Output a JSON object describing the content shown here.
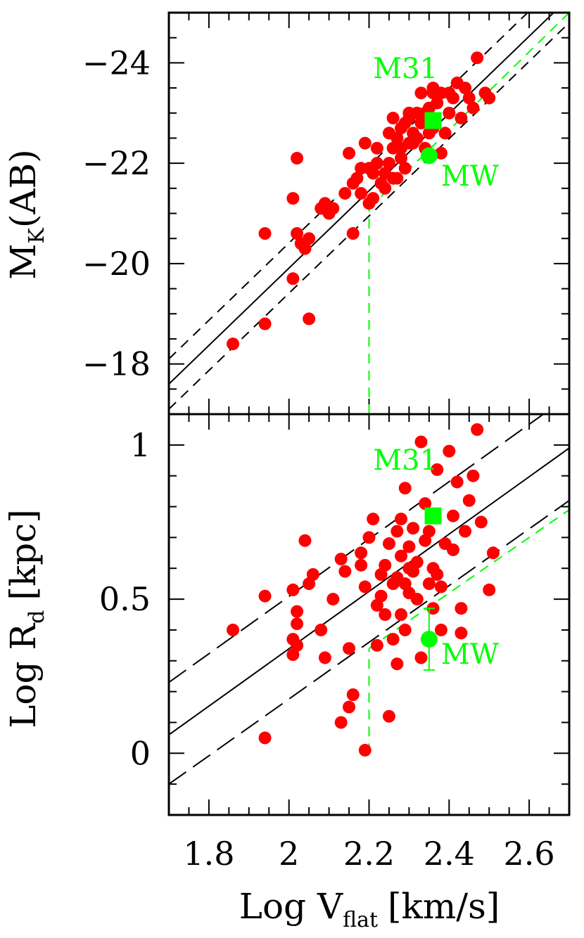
{
  "chart_data": [
    {
      "type": "scatter",
      "panel": "top",
      "xlabel_main": "Log V",
      "xlabel_sub": "flat",
      "xlabel_unit": "[km/s]",
      "ylabel_main": "M",
      "ylabel_sub": "K",
      "ylabel_unit": "(AB)",
      "xlim": [
        1.7,
        2.7
      ],
      "ylim": [
        -17,
        -25
      ],
      "xticks": [
        1.8,
        2.0,
        2.2,
        2.4,
        2.6
      ],
      "yticks": [
        -18,
        -20,
        -22,
        -24
      ],
      "yticks_labels": [
        "−18",
        "−20",
        "−22",
        "−24"
      ],
      "fit_lines": [
        {
          "style": "solid",
          "color": "#000000",
          "points": [
            [
              1.7,
              -17.6
            ],
            [
              2.7,
              -25.3
            ]
          ]
        },
        {
          "style": "dashed",
          "color": "#000000",
          "points": [
            [
              1.7,
              -18.1
            ],
            [
              2.7,
              -25.8
            ]
          ]
        },
        {
          "style": "dashed",
          "color": "#000000",
          "points": [
            [
              1.7,
              -17.1
            ],
            [
              2.7,
              -24.8
            ]
          ]
        },
        {
          "style": "dashed",
          "color": "#00ff00",
          "points": [
            [
              2.2,
              -21.1
            ],
            [
              2.7,
              -25.0
            ]
          ]
        },
        {
          "style": "dashed",
          "color": "#00ff00",
          "points": [
            [
              2.2,
              -17.0
            ],
            [
              2.2,
              -21.1
            ]
          ]
        }
      ],
      "points": [
        [
          1.86,
          -18.4
        ],
        [
          1.94,
          -18.8
        ],
        [
          1.94,
          -20.6
        ],
        [
          2.02,
          -22.1
        ],
        [
          2.01,
          -21.3
        ],
        [
          2.02,
          -20.6
        ],
        [
          2.03,
          -20.4
        ],
        [
          2.04,
          -20.3
        ],
        [
          2.05,
          -20.5
        ],
        [
          2.01,
          -19.7
        ],
        [
          2.05,
          -18.9
        ],
        [
          2.08,
          -21.1
        ],
        [
          2.09,
          -21.2
        ],
        [
          2.1,
          -21.0
        ],
        [
          2.11,
          -21.1
        ],
        [
          2.14,
          -21.4
        ],
        [
          2.16,
          -21.6
        ],
        [
          2.17,
          -21.7
        ],
        [
          2.18,
          -21.4
        ],
        [
          2.16,
          -20.6
        ],
        [
          2.15,
          -22.2
        ],
        [
          2.19,
          -22.4
        ],
        [
          2.2,
          -21.9
        ],
        [
          2.21,
          -21.3
        ],
        [
          2.2,
          -21.2
        ],
        [
          2.22,
          -22.3
        ],
        [
          2.23,
          -21.6
        ],
        [
          2.24,
          -21.8
        ],
        [
          2.25,
          -22.0
        ],
        [
          2.26,
          -21.7
        ],
        [
          2.26,
          -22.3
        ],
        [
          2.27,
          -22.5
        ],
        [
          2.28,
          -22.1
        ],
        [
          2.28,
          -22.7
        ],
        [
          2.29,
          -21.9
        ],
        [
          2.3,
          -22.9
        ],
        [
          2.3,
          -22.4
        ],
        [
          2.31,
          -22.6
        ],
        [
          2.32,
          -23.0
        ],
        [
          2.33,
          -22.8
        ],
        [
          2.33,
          -23.4
        ],
        [
          2.34,
          -22.3
        ],
        [
          2.35,
          -23.1
        ],
        [
          2.36,
          -22.7
        ],
        [
          2.36,
          -23.5
        ],
        [
          2.37,
          -23.2
        ],
        [
          2.38,
          -23.4
        ],
        [
          2.39,
          -22.6
        ],
        [
          2.4,
          -23.0
        ],
        [
          2.41,
          -23.3
        ],
        [
          2.42,
          -23.6
        ],
        [
          2.43,
          -22.9
        ],
        [
          2.44,
          -23.5
        ],
        [
          2.45,
          -23.3
        ],
        [
          2.46,
          -23.1
        ],
        [
          2.47,
          -24.1
        ],
        [
          2.49,
          -23.4
        ],
        [
          2.5,
          -23.3
        ],
        [
          2.38,
          -22.2
        ],
        [
          2.31,
          -22.4
        ],
        [
          2.27,
          -21.7
        ],
        [
          2.25,
          -22.6
        ],
        [
          2.22,
          -22.0
        ],
        [
          2.29,
          -22.8
        ],
        [
          2.35,
          -22.6
        ],
        [
          2.4,
          -23.4
        ],
        [
          2.36,
          -23.4
        ],
        [
          2.34,
          -23.0
        ],
        [
          2.32,
          -22.5
        ],
        [
          2.28,
          -22.3
        ],
        [
          2.24,
          -21.5
        ],
        [
          2.21,
          -21.8
        ],
        [
          2.18,
          -21.9
        ],
        [
          2.3,
          -23.0
        ],
        [
          2.26,
          -22.9
        ]
      ],
      "special_points": [
        {
          "label": "M31",
          "marker": "square",
          "x": 2.36,
          "y": -22.85
        },
        {
          "label": "MW",
          "marker": "circle",
          "x": 2.35,
          "y": -22.15
        }
      ],
      "annotations": [
        {
          "text": "M31",
          "x": 2.21,
          "y": -23.7
        },
        {
          "text": "MW",
          "x": 2.38,
          "y": -21.55
        }
      ]
    },
    {
      "type": "scatter",
      "panel": "bottom",
      "xlabel_main": "Log V",
      "xlabel_sub": "flat",
      "xlabel_unit": "[km/s]",
      "ylabel_main": "Log R",
      "ylabel_sub": "d",
      "ylabel_unit": "[kpc]",
      "xlim": [
        1.7,
        2.7
      ],
      "ylim": [
        -0.2,
        1.1
      ],
      "xticks": [
        1.8,
        2.0,
        2.2,
        2.4,
        2.6
      ],
      "xticks_labels": [
        "1.8",
        "2",
        "2.2",
        "2.4",
        "2.6"
      ],
      "yticks": [
        0,
        0.5,
        1
      ],
      "yticks_labels": [
        "0",
        "0.5",
        "1"
      ],
      "fit_lines": [
        {
          "style": "solid",
          "color": "#000000",
          "points": [
            [
              1.7,
              0.06
            ],
            [
              2.7,
              0.99
            ]
          ]
        },
        {
          "style": "longdash",
          "color": "#000000",
          "points": [
            [
              1.7,
              0.23
            ],
            [
              2.7,
              1.16
            ]
          ]
        },
        {
          "style": "longdash",
          "color": "#000000",
          "points": [
            [
              1.7,
              -0.1
            ],
            [
              2.7,
              0.82
            ]
          ]
        },
        {
          "style": "dashed",
          "color": "#00ff00",
          "points": [
            [
              2.2,
              0.34
            ],
            [
              2.7,
              0.79
            ]
          ]
        },
        {
          "style": "dashed",
          "color": "#00ff00",
          "points": [
            [
              2.2,
              0.0
            ],
            [
              2.2,
              0.34
            ]
          ]
        }
      ],
      "points": [
        [
          1.86,
          0.4
        ],
        [
          1.94,
          0.51
        ],
        [
          1.94,
          0.05
        ],
        [
          2.01,
          0.53
        ],
        [
          2.01,
          0.37
        ],
        [
          2.01,
          0.32
        ],
        [
          2.02,
          0.46
        ],
        [
          2.02,
          0.42
        ],
        [
          2.02,
          0.35
        ],
        [
          2.04,
          0.69
        ],
        [
          2.05,
          0.55
        ],
        [
          2.06,
          0.58
        ],
        [
          2.08,
          0.4
        ],
        [
          2.09,
          0.31
        ],
        [
          2.11,
          0.5
        ],
        [
          2.13,
          0.63
        ],
        [
          2.14,
          0.59
        ],
        [
          2.15,
          0.34
        ],
        [
          2.15,
          0.15
        ],
        [
          2.16,
          0.19
        ],
        [
          2.13,
          0.1
        ],
        [
          2.18,
          0.65
        ],
        [
          2.18,
          0.61
        ],
        [
          2.19,
          0.01
        ],
        [
          2.19,
          0.54
        ],
        [
          2.2,
          0.7
        ],
        [
          2.21,
          0.76
        ],
        [
          2.22,
          0.35
        ],
        [
          2.22,
          0.48
        ],
        [
          2.23,
          0.58
        ],
        [
          2.23,
          0.51
        ],
        [
          2.24,
          0.45
        ],
        [
          2.25,
          0.68
        ],
        [
          2.25,
          0.12
        ],
        [
          2.26,
          0.55
        ],
        [
          2.26,
          0.37
        ],
        [
          2.27,
          0.29
        ],
        [
          2.27,
          0.72
        ],
        [
          2.28,
          0.76
        ],
        [
          2.28,
          0.64
        ],
        [
          2.29,
          0.55
        ],
        [
          2.29,
          0.4
        ],
        [
          2.29,
          0.86
        ],
        [
          2.3,
          0.67
        ],
        [
          2.3,
          0.52
        ],
        [
          2.31,
          0.73
        ],
        [
          2.31,
          0.59
        ],
        [
          2.32,
          0.5
        ],
        [
          2.32,
          0.62
        ],
        [
          2.33,
          0.31
        ],
        [
          2.33,
          1.01
        ],
        [
          2.34,
          0.81
        ],
        [
          2.34,
          0.69
        ],
        [
          2.35,
          0.55
        ],
        [
          2.36,
          0.77
        ],
        [
          2.36,
          0.47
        ],
        [
          2.37,
          0.92
        ],
        [
          2.37,
          0.58
        ],
        [
          2.38,
          0.54
        ],
        [
          2.38,
          0.4
        ],
        [
          2.39,
          0.68
        ],
        [
          2.4,
          0.98
        ],
        [
          2.41,
          0.77
        ],
        [
          2.41,
          0.66
        ],
        [
          2.42,
          0.88
        ],
        [
          2.43,
          0.47
        ],
        [
          2.43,
          0.39
        ],
        [
          2.44,
          0.72
        ],
        [
          2.45,
          0.82
        ],
        [
          2.46,
          0.9
        ],
        [
          2.47,
          1.05
        ],
        [
          2.48,
          0.75
        ],
        [
          2.5,
          0.53
        ],
        [
          2.51,
          0.65
        ],
        [
          2.36,
          0.6
        ],
        [
          2.3,
          0.6
        ],
        [
          2.27,
          0.57
        ],
        [
          2.24,
          0.61
        ],
        [
          2.28,
          0.45
        ],
        [
          2.35,
          0.72
        ]
      ],
      "special_points": [
        {
          "label": "M31",
          "marker": "square",
          "x": 2.36,
          "y": 0.77
        },
        {
          "label": "MW",
          "marker": "circle",
          "x": 2.35,
          "y": 0.37,
          "err_low": 0.27,
          "err_high": 0.47
        }
      ],
      "annotations": [
        {
          "text": "M31",
          "x": 2.21,
          "y": 0.92
        },
        {
          "text": "MW",
          "x": 2.38,
          "y": 0.29
        }
      ]
    }
  ],
  "colors": {
    "data_points": "#ff0000",
    "highlight": "#00ff00",
    "axes": "#000000"
  }
}
